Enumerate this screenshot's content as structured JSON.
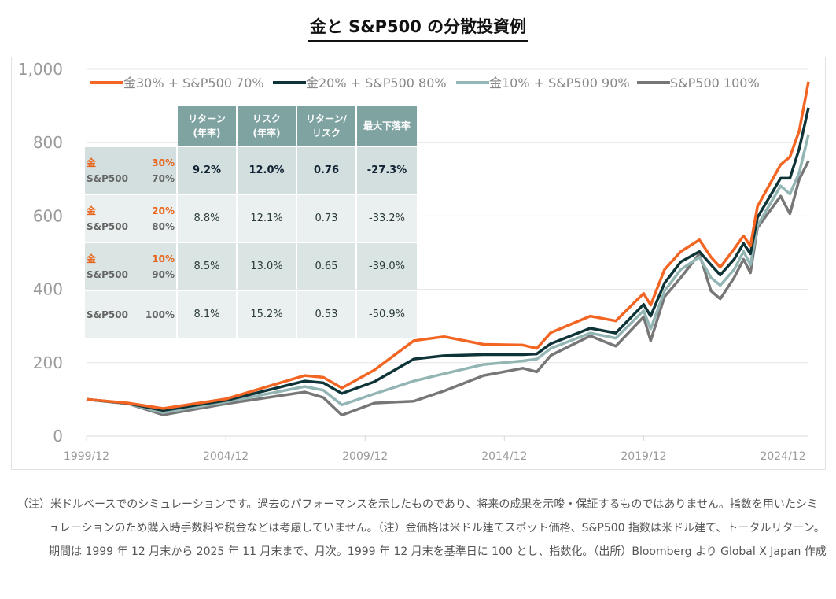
{
  "title": "金と S&P500 の分散投資例",
  "chart_data": {
    "type": "line",
    "title": "金と S&P500 の分散投資例",
    "ylim": [
      0,
      1000
    ],
    "yticks": [
      "0",
      "200",
      "400",
      "600",
      "800",
      "1,000"
    ],
    "ytick_values": [
      0,
      200,
      400,
      600,
      800,
      1000
    ],
    "xticks": [
      "1999/12",
      "2004/12",
      "2009/12",
      "2014/12",
      "2019/12",
      "2024/12"
    ],
    "xlim": [
      "1999/12",
      "2025/11"
    ],
    "grid": "horizontal",
    "legend_position": "top",
    "x": [
      "1999/12",
      "2001/06",
      "2002/09",
      "2004/12",
      "2007/10",
      "2008/06",
      "2009/02",
      "2010/04",
      "2011/09",
      "2012/10",
      "2014/03",
      "2015/08",
      "2016/02",
      "2016/08",
      "2018/01",
      "2018/12",
      "2019/12",
      "2020/03",
      "2020/09",
      "2021/04",
      "2021/12",
      "2022/05",
      "2022/09",
      "2023/03",
      "2023/07",
      "2023/10",
      "2024/01",
      "2024/11",
      "2025/03",
      "2025/07",
      "2025/11"
    ],
    "series": [
      {
        "name": "金30% + S&P500 70%",
        "color": "#f26522",
        "values": [
          100,
          90,
          75,
          101,
          165,
          160,
          131,
          180,
          260,
          271,
          250,
          248,
          239,
          282,
          327,
          314,
          389,
          357,
          454,
          503,
          535,
          488,
          460,
          510,
          546,
          518,
          626,
          740,
          761,
          832,
          966
        ]
      },
      {
        "name": "金20% + S&P500 80%",
        "color": "#0e3438",
        "values": [
          100,
          89,
          70,
          97,
          150,
          145,
          116,
          148,
          210,
          219,
          222,
          222,
          224,
          252,
          294,
          281,
          359,
          327,
          417,
          475,
          503,
          467,
          439,
          482,
          525,
          497,
          596,
          703,
          703,
          783,
          895
        ]
      },
      {
        "name": "金10% + S&P500 90%",
        "color": "#93b5b3",
        "values": [
          100,
          88,
          64,
          93,
          135,
          125,
          85,
          115,
          150,
          170,
          195,
          205,
          210,
          239,
          281,
          267,
          342,
          292,
          396,
          454,
          488,
          432,
          411,
          454,
          503,
          467,
          574,
          682,
          660,
          718,
          822
        ]
      },
      {
        "name": "S&P500 100%",
        "color": "#777777",
        "values": [
          100,
          88,
          58,
          88,
          120,
          105,
          57,
          90,
          95,
          123,
          165,
          185,
          175,
          220,
          273,
          245,
          325,
          260,
          380,
          432,
          497,
          396,
          374,
          432,
          482,
          445,
          568,
          654,
          606,
          700,
          750
        ]
      }
    ]
  },
  "table": {
    "headers": [
      "リターン\n(年率)",
      "リスク\n(年率)",
      "リターン/\nリスク",
      "最大下落率"
    ],
    "header_lines": [
      [
        "リターン",
        "(年率)"
      ],
      [
        "リスク",
        "(年率)"
      ],
      [
        "リターン/",
        "リスク"
      ],
      [
        "最大下落率"
      ]
    ],
    "rows": [
      {
        "gold_label": "金",
        "gold_pct": "30%",
        "sp_label": "S&P500",
        "sp_pct": "70%",
        "values": [
          "9.2%",
          "12.0%",
          "0.76",
          "-27.3%"
        ]
      },
      {
        "gold_label": "金",
        "gold_pct": "20%",
        "sp_label": "S&P500",
        "sp_pct": "80%",
        "values": [
          "8.8%",
          "12.1%",
          "0.73",
          "-33.2%"
        ]
      },
      {
        "gold_label": "金",
        "gold_pct": "10%",
        "sp_label": "S&P500",
        "sp_pct": "90%",
        "values": [
          "8.5%",
          "13.0%",
          "0.65",
          "-39.0%"
        ]
      },
      {
        "gold_label": "",
        "gold_pct": "",
        "sp_label": "S&P500",
        "sp_pct": "100%",
        "values": [
          "8.1%",
          "15.2%",
          "0.53",
          "-50.9%"
        ]
      }
    ]
  },
  "notes": {
    "line1": "（注）米ドルベースでのシミュレーションです。過去のパフォーマンスを示したものであり、将来の成果を示唆・保証するものではありません。指数を用いたシミュレーションのため購入時手数料や税金などは考慮していません。（注）金価格は米ドル建てスポット価格、S&P500 指数は米ドル建て、トータルリターン。期間は 1999 年 12 月末から 2025 年 11 月末まで、月次。1999 年 12 月末を基準日に 100 とし、指数化。（出所）Bloomberg より Global X Japan 作成"
  }
}
